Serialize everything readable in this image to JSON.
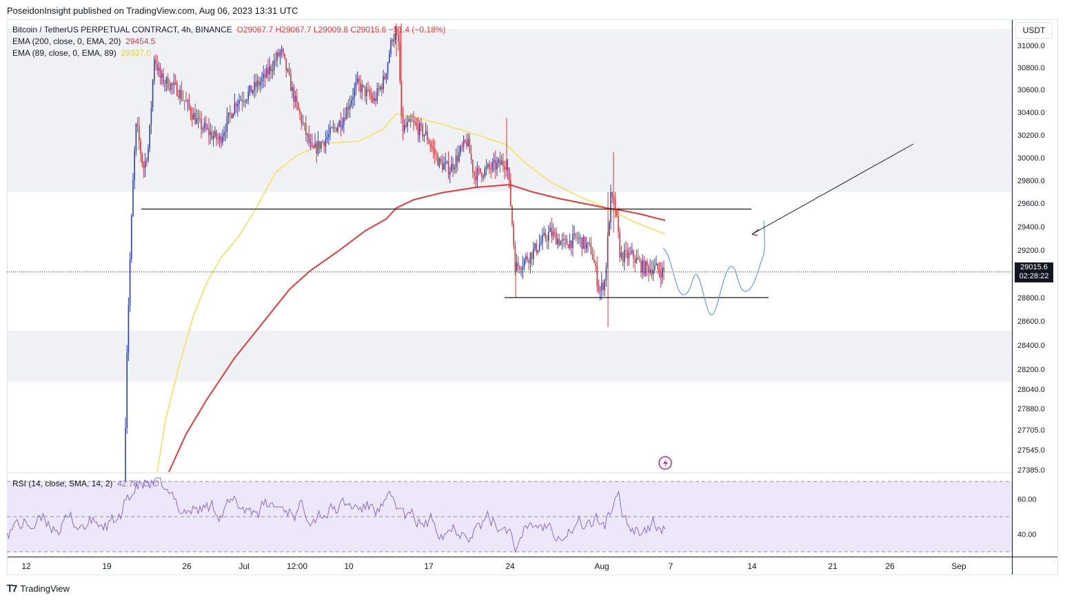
{
  "header": "PoseidonInsight published on TradingView.com, Aug 06, 2023 13:31 UTC",
  "legend": {
    "main": {
      "symbol": "Bitcoin / TetherUS PERPETUAL CONTRACT, 4h, BINANCE",
      "o": "O29067.7",
      "h": "H29067.7",
      "l": "L29009.8",
      "c": "C29015.6",
      "chg": "−51.4 (−0.18%)"
    },
    "ema200": {
      "label": "EMA (200, close, 0, EMA, 20)",
      "value": "29454.5"
    },
    "ema89": {
      "label": "EMA (89, close, 0, EMA, 89)",
      "value": "29337.0"
    },
    "rsi": {
      "label": "RSI (14, close, SMA, 14, 2)",
      "value": "42.78",
      "extra": "∅ ∅"
    }
  },
  "currency": "USDT",
  "price_tag": {
    "price": "29015.6",
    "countdown": "02:28:22"
  },
  "footer": {
    "brand": "TradingView",
    "logo_icon": "tradingview-logo-icon"
  },
  "icons": {
    "bolt": "lightning-icon"
  },
  "colors": {
    "up": "#2c3fb2",
    "down": "#d9343a",
    "ema200": "#e23a3a",
    "ema89": "#f4e05a",
    "rsi": "#8b69c9",
    "rsi_band": "#ede7f9",
    "zone": "#f0f1f5",
    "projection": "#6b9bd8"
  },
  "chart_data": [
    {
      "type": "candlestick",
      "title": "Bitcoin / TetherUS PERPETUAL CONTRACT, 4h, BINANCE",
      "x_ticks": [
        "12",
        "19",
        "26",
        "Jul",
        "12:00",
        "10",
        "17",
        "24",
        "Aug",
        "7",
        "14",
        "21",
        "26",
        "Sep"
      ],
      "y_ticks": [
        31000.0,
        30800.0,
        30600.0,
        30400.0,
        30200.0,
        30000.0,
        29800.0,
        29600.0,
        29400.0,
        29200.0,
        28800.0,
        28600.0,
        28400.0,
        28200.0,
        28040.0,
        27880.0,
        27705.0,
        27545.0,
        27385.0
      ],
      "current_price": 29015.6,
      "horizontal_levels": [
        29550,
        28800
      ],
      "zones": [
        [
          29700,
          31150
        ],
        [
          28100,
          28520
        ]
      ],
      "series": [
        {
          "name": "EMA (200, close, 0, EMA, 20)",
          "last_value": 29454.5
        },
        {
          "name": "EMA (89, close, 0, EMA, 89)",
          "last_value": 29337.0
        }
      ]
    },
    {
      "type": "line",
      "title": "RSI (14, close, SMA, 14, 2)",
      "y_ticks": [
        60.0,
        40.0
      ],
      "bands": [
        70,
        50,
        30
      ],
      "last_value": 42.78
    }
  ]
}
